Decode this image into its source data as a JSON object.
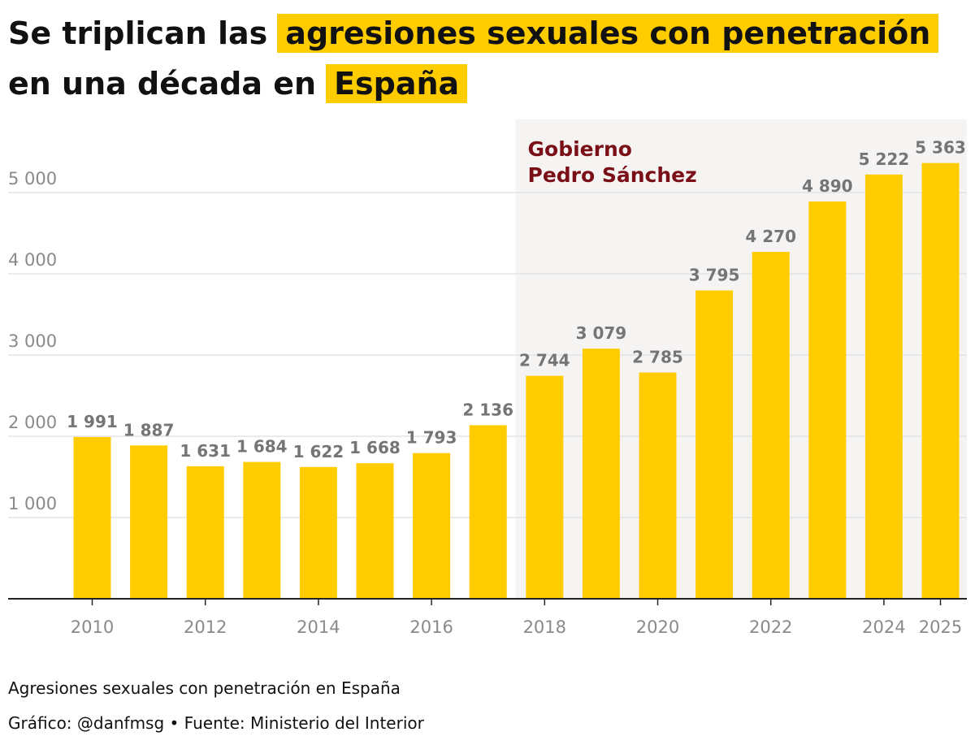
{
  "title": {
    "line1_plain": "Se triplican las",
    "line1_highlight": "agresiones sexuales con penetración",
    "line2_plain": "en una década en",
    "line2_highlight": "España"
  },
  "annotation": {
    "line1": "Gobierno",
    "line2": "Pedro Sánchez",
    "shaded_from_year": 2018,
    "shaded_to_year": 2025
  },
  "colors": {
    "bar": "#ffcc00",
    "highlight": "#ffcc00",
    "shade": "#f6f3f3",
    "annotation_text": "#7a0f17",
    "value_label": "#757575",
    "tick_label": "#8a8a8a",
    "grid": "#e3e3e3",
    "axis": "#222222"
  },
  "chart_data": {
    "type": "bar",
    "categories": [
      "2010",
      "2011",
      "2012",
      "2013",
      "2014",
      "2015",
      "2016",
      "2017",
      "2018",
      "2019",
      "2020",
      "2021",
      "2022",
      "2023",
      "2024",
      "2025"
    ],
    "values": [
      1991,
      1887,
      1631,
      1684,
      1622,
      1668,
      1793,
      2136,
      2744,
      3079,
      2785,
      3795,
      4270,
      4890,
      5222,
      5363
    ],
    "value_labels": [
      "1 991",
      "1 887",
      "1 631",
      "1 684",
      "1 622",
      "1 668",
      "1 793",
      "2 136",
      "2 744",
      "3 079",
      "2 785",
      "3 795",
      "4 270",
      "4 890",
      "5 222",
      "5 363"
    ],
    "x_tick_labels": [
      "2010",
      "2012",
      "2014",
      "2016",
      "2018",
      "2020",
      "2022",
      "2024",
      "2025"
    ],
    "y_ticks": [
      1000,
      2000,
      3000,
      4000,
      5000
    ],
    "y_tick_labels": [
      "1 000",
      "2 000",
      "3 000",
      "4 000",
      "5 000"
    ],
    "ylim": [
      0,
      5400
    ],
    "grid": true,
    "title": "Se triplican las agresiones sexuales con penetración en una década en España",
    "xlabel": "",
    "ylabel": ""
  },
  "footer": {
    "subtitle": "Agresiones sexuales con penetración en España",
    "credit": "Gráfico: @danfmsg • Fuente: Ministerio del Interior"
  }
}
